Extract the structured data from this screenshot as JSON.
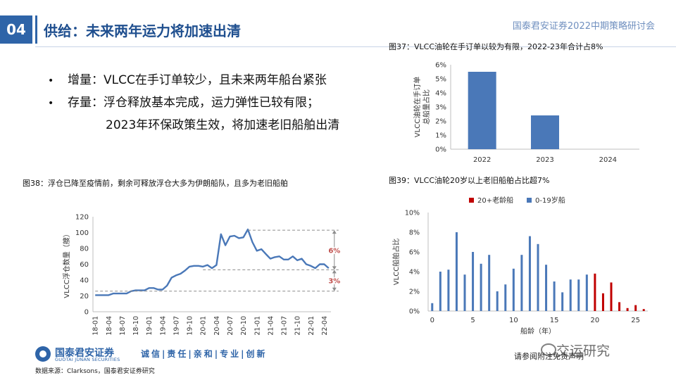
{
  "header": {
    "section_number": "04",
    "title": "供给：未来两年运力将加速出清",
    "conference": "国泰君安证券2022中期策略研讨会"
  },
  "bullets": [
    {
      "marker": "•",
      "text": "增量：VLCC在手订单较少，且未来两年船台紧张"
    },
    {
      "marker": "•",
      "text": "存量：浮仓释放基本完成，运力弹性已较有限；"
    },
    {
      "marker": "",
      "text": "2023年环保政策生效，将加速老旧船舶出清"
    }
  ],
  "figures": {
    "fig37_title": "图37：VLCC油轮在手订单以较为有限，2022-23年合计占8%",
    "fig38_title": "图38：浮仓已降至疫情前，剩余可释放浮仓大多为伊朗船队，且多为老旧船舶",
    "fig39_title": "图39：VLCC油轮20岁以上老旧船舶占比超7%"
  },
  "chart_data": [
    {
      "id": "fig37",
      "type": "bar",
      "title": "图37：VLCC油轮在手订单以较为有限，2022-23年合计占8%",
      "ylabel": "VLCC油轮在手订单总船量占比",
      "ylabel_lines": [
        "VLCC油轮在手订单",
        "总船量占比"
      ],
      "categories": [
        "2022",
        "2023",
        "2024"
      ],
      "values": [
        5.5,
        2.4,
        0.0
      ],
      "ylim": [
        0,
        6
      ],
      "yticks": [
        0,
        1,
        2,
        3,
        4,
        5,
        6
      ],
      "ytick_labels": [
        "0%",
        "1%",
        "2%",
        "3%",
        "4%",
        "5%",
        "6%"
      ],
      "color": "#4a78b8",
      "grid": false
    },
    {
      "id": "fig38",
      "type": "line",
      "title": "图38：浮仓已降至疫情前，剩余可释放浮仓大多为伊朗船队，且多为老旧船舶",
      "ylabel": "VLCC浮仓数量（艘）",
      "x": [
        "18-01",
        "18-02",
        "18-03",
        "18-04",
        "18-05",
        "18-06",
        "18-07",
        "18-08",
        "18-09",
        "18-10",
        "18-11",
        "18-12",
        "19-01",
        "19-02",
        "19-03",
        "19-04",
        "19-05",
        "19-06",
        "19-07",
        "19-08",
        "19-09",
        "19-10",
        "19-11",
        "19-12",
        "20-01",
        "20-02",
        "20-03",
        "20-04",
        "20-05",
        "20-06",
        "20-07",
        "20-08",
        "20-09",
        "20-10",
        "20-11",
        "20-12",
        "21-01",
        "21-02",
        "21-03",
        "21-04",
        "21-05",
        "21-06",
        "21-07",
        "21-08",
        "21-09",
        "21-10",
        "21-11",
        "21-12",
        "22-01",
        "22-02",
        "22-03",
        "22-04",
        "22-05"
      ],
      "xtick_labels": [
        "18-01",
        "18-04",
        "18-07",
        "18-10",
        "19-01",
        "19-04",
        "19-07",
        "19-10",
        "20-01",
        "20-04",
        "20-07",
        "20-10",
        "21-01",
        "21-04",
        "21-07",
        "21-10",
        "22-01",
        "22-04"
      ],
      "series": [
        {
          "values": [
            21,
            21,
            21,
            21,
            23,
            23,
            23,
            23,
            26,
            27,
            27,
            27,
            30,
            30,
            28,
            28,
            33,
            43,
            46,
            48,
            52,
            57,
            58,
            58,
            57,
            59,
            55,
            59,
            98,
            84,
            95,
            96,
            93,
            94,
            104,
            88,
            77,
            79,
            73,
            67,
            69,
            70,
            66,
            66,
            70,
            65,
            67,
            60,
            58,
            55,
            60,
            60,
            55
          ],
          "color": "#4a78b8"
        }
      ],
      "ylim": [
        0,
        120
      ],
      "yticks": [
        0,
        20,
        40,
        60,
        80,
        100,
        120
      ],
      "annotations": [
        {
          "text": "6%",
          "color": "#c0504d",
          "from": 103,
          "to": 53
        },
        {
          "text": "3%",
          "color": "#c0504d",
          "from": 53,
          "to": 26
        }
      ],
      "grid": false
    },
    {
      "id": "fig39",
      "type": "bar",
      "title": "图39：VLCC油轮20岁以上老旧船舶占比超7%",
      "xlabel": "船龄（年）",
      "ylabel": "VLCC船舶占比",
      "x": [
        0,
        1,
        2,
        3,
        4,
        5,
        6,
        7,
        8,
        9,
        10,
        11,
        12,
        13,
        14,
        15,
        16,
        17,
        18,
        19,
        20,
        21,
        22,
        23,
        24,
        25,
        26
      ],
      "values": [
        0.8,
        4.0,
        4.2,
        8.0,
        3.7,
        6.0,
        4.8,
        5.7,
        2.0,
        2.7,
        4.3,
        5.7,
        7.6,
        6.8,
        4.7,
        3.0,
        1.9,
        3.2,
        3.2,
        3.7,
        3.8,
        1.8,
        2.9,
        0.9,
        0.3,
        0.6,
        0.2
      ],
      "series": [
        {
          "name": "20+老龄船",
          "color": "#c00000",
          "from_x": 20
        },
        {
          "name": "0-19岁船",
          "color": "#4a78b8",
          "to_x": 19
        }
      ],
      "ylim": [
        0,
        10
      ],
      "yticks": [
        0,
        2,
        4,
        6,
        8,
        10
      ],
      "ytick_labels": [
        "0%",
        "2%",
        "4%",
        "6%",
        "8%",
        "10%"
      ],
      "xticks": [
        0,
        5,
        10,
        15,
        20,
        25
      ],
      "legend": "top",
      "grid": false
    }
  ],
  "footer": {
    "brand": "国泰君安证券",
    "brand_en": "GUOTAI JUNAN SECURITIES",
    "slogan": "诚信|责任|亲和|专业|创新",
    "source": "数据来源：Clarksons，国泰君安证券研究",
    "disclaimer": "请参阅附注免责声明",
    "watermark": "交运研究"
  }
}
